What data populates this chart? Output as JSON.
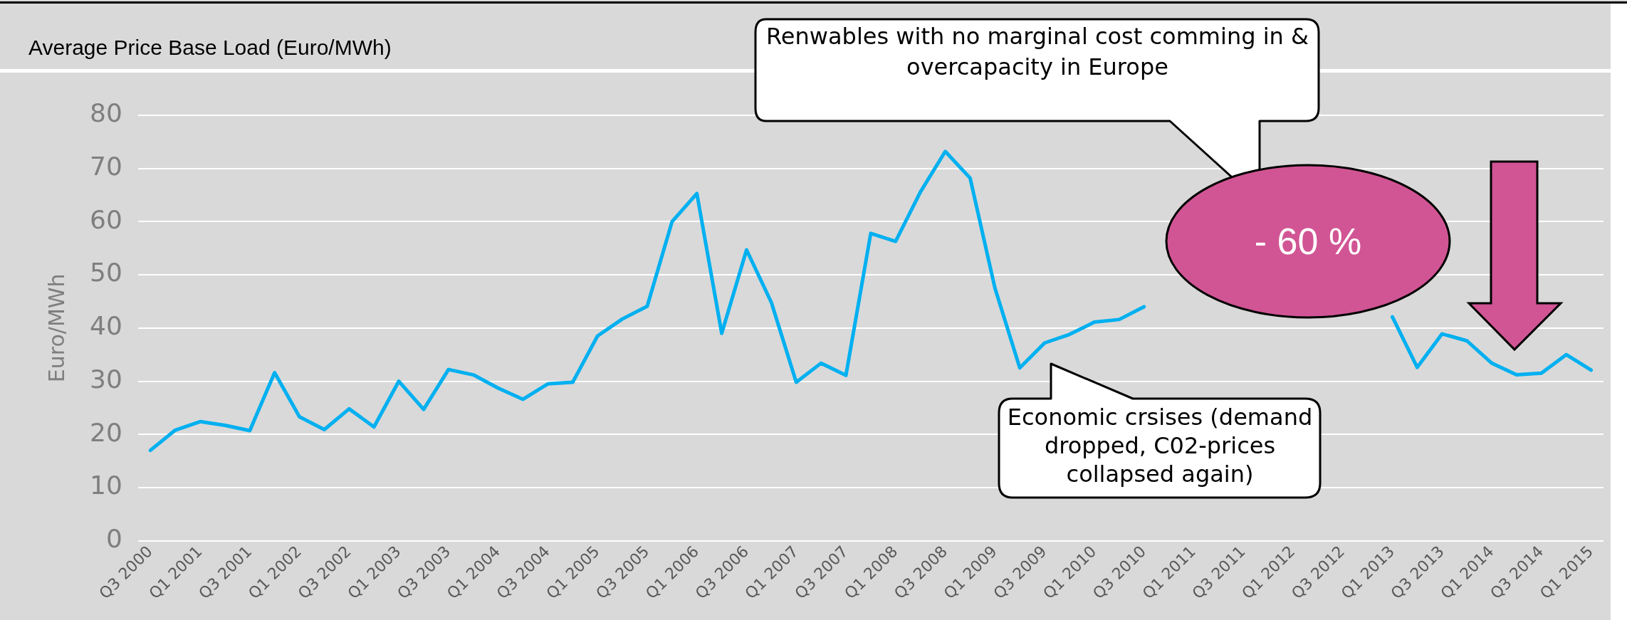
{
  "chart_data": {
    "type": "line",
    "title": "Average Price Base Load (Euro/MWh)",
    "ylabel": "Euro/MWh",
    "categories": [
      "Q3 2000",
      null,
      "Q1 2001",
      null,
      "Q3 2001",
      null,
      "Q1 2002",
      null,
      "Q3 2002",
      null,
      "Q1 2003",
      null,
      "Q3 2003",
      null,
      "Q1 2004",
      null,
      "Q3 2004",
      null,
      "Q1 2005",
      null,
      "Q3 2005",
      null,
      "Q1 2006",
      null,
      "Q3 2006",
      null,
      "Q1 2007",
      null,
      "Q3 2007",
      null,
      "Q1 2008",
      null,
      "Q3 2008",
      null,
      "Q1 2009",
      null,
      "Q3 2009",
      null,
      "Q1 2010",
      null,
      "Q3 2010",
      null,
      "Q1 2011",
      null,
      "Q3 2011",
      null,
      "Q1 2012",
      null,
      "Q3 2012",
      null,
      "Q1 2013",
      null,
      "Q3 2013",
      null,
      "Q1 2014",
      null,
      "Q3 2014",
      null,
      "Q1 2015"
    ],
    "series": [
      {
        "color": "#00b0f0",
        "values": [
          17.0,
          20.8,
          22.4,
          21.7,
          20.7,
          31.6,
          23.3,
          20.9,
          24.8,
          21.4,
          30.0,
          24.7,
          32.2,
          31.2,
          28.7,
          26.6,
          29.5,
          29.8,
          38.5,
          41.7,
          44.1,
          60.0,
          65.3,
          39.0,
          54.7,
          44.8,
          29.8,
          33.4,
          31.1,
          57.8,
          56.3,
          65.6,
          73.2,
          68.2,
          47.5,
          32.5,
          37.2,
          38.8,
          41.1,
          41.6,
          44.0,
          null,
          null,
          null,
          null,
          null,
          null,
          null,
          null,
          null,
          42.1,
          32.6,
          38.9,
          37.6,
          33.4,
          31.2,
          31.5,
          35.0,
          32.1
        ]
      }
    ],
    "ylim": [
      0,
      80
    ],
    "yticks": [
      0,
      10,
      20,
      30,
      40,
      50,
      60,
      70,
      80
    ],
    "grid": "y",
    "legend": false,
    "marker": "none",
    "line_style": "solid",
    "annotations": [
      "Renwables with no marginal cost comming in & overcapacity in Europe",
      "- 60 %",
      "Economic crsises (demand dropped, C02-prices collapsed again)"
    ]
  }
}
